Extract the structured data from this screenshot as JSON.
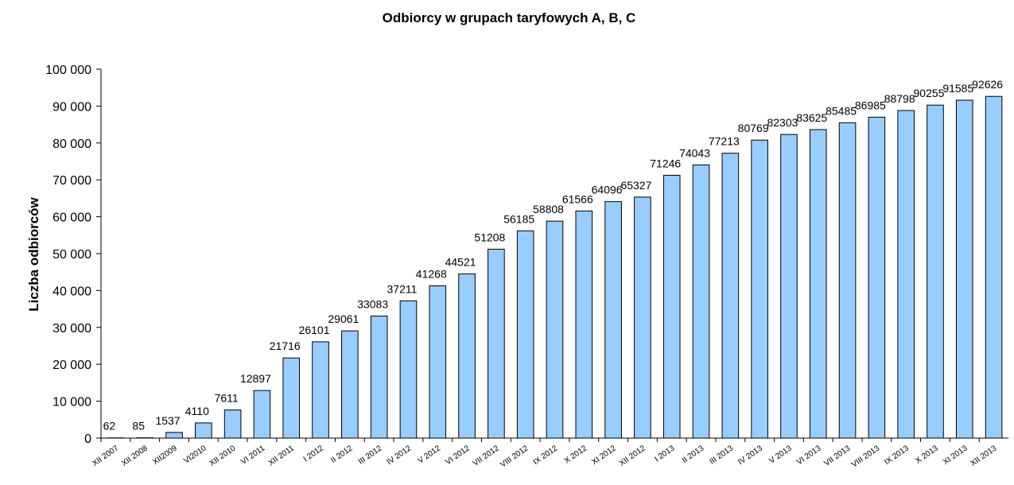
{
  "chart_data": {
    "type": "bar",
    "title": "Odbiorcy w grupach taryfowych A, B, C",
    "y_label": "Liczba odbiorców",
    "categories": [
      "XII 2007",
      "XII 2008",
      "XII2009",
      "VI2010",
      "XII 2010",
      "VI 2011",
      "XII 2011",
      "I 2012",
      "II 2012",
      "III 2012",
      "IV 2012",
      "V 2012",
      "VI 2012",
      "VII 2012",
      "VIII 2012",
      "IX 2012",
      "X 2012",
      "XI 2012",
      "XII 2012",
      "I 2013",
      "II 2013",
      "III 2013",
      "IV 2013",
      "V 2013",
      "VI 2013",
      "VII 2013",
      "VIII 2013",
      "IX 2013",
      "X 2013",
      "XI 2013",
      "XII 2013"
    ],
    "values": [
      62,
      85,
      1537,
      4110,
      7611,
      12897,
      21716,
      26101,
      29061,
      33083,
      37211,
      41268,
      44521,
      51208,
      56185,
      58808,
      61566,
      64096,
      65327,
      71246,
      74043,
      77213,
      80769,
      82303,
      83625,
      85485,
      86985,
      88798,
      90255,
      91585,
      92626
    ],
    "color": "#99ccff",
    "ylim": [
      0,
      100000
    ],
    "yticks": [
      0,
      {
        "value": 10000,
        "label": "10 000"
      },
      {
        "value": 20000,
        "label": "20 000"
      },
      {
        "value": 30000,
        "label": "30 000"
      },
      {
        "value": 40000,
        "label": "40 000"
      },
      {
        "value": 50000,
        "label": "50 000"
      },
      {
        "value": 60000,
        "label": "60 000"
      },
      {
        "value": 70000,
        "label": "70 000"
      },
      {
        "value": 80000,
        "label": "80 000"
      },
      {
        "value": 90000,
        "label": "90 000"
      },
      {
        "value": 100000,
        "label": "100 000"
      }
    ],
    "grid": false
  }
}
